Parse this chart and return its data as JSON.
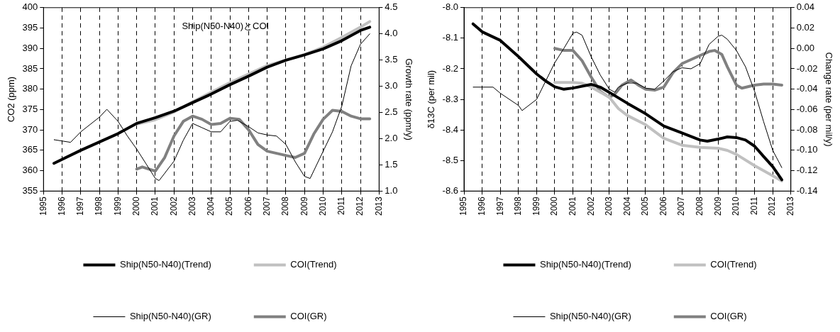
{
  "chart_data": [
    {
      "type": "line",
      "annotations": [
        "Ship(N50-N40)とCOI"
      ],
      "ylabel": "CO2 (ppm)",
      "y2label": "Growth rate (ppm/y)",
      "xlim": [
        1995,
        2013
      ],
      "xticks": [
        1995,
        1996,
        1997,
        1998,
        1999,
        2000,
        2001,
        2002,
        2003,
        2004,
        2005,
        2006,
        2007,
        2008,
        2009,
        2010,
        2011,
        2012,
        2013
      ],
      "ylim": [
        355,
        400
      ],
      "yticks": [
        355,
        360,
        365,
        370,
        375,
        380,
        385,
        390,
        395,
        400
      ],
      "y2lim": [
        1,
        4.5
      ],
      "y2ticks": [
        {
          "value": 1,
          "label": "1.0"
        },
        1.5,
        {
          "value": 2,
          "label": "2.0"
        },
        2.5,
        {
          "value": 3,
          "label": "3.0"
        },
        3.5,
        {
          "value": 4,
          "label": "4.0"
        },
        4.5
      ],
      "grid": "x",
      "legend": "bottom",
      "marker": "none",
      "line_style": "solid",
      "series": [
        {
          "name": "Ship(N50-N40)(Trend)",
          "color": "#000000",
          "x": [
            1995.56,
            1997,
            1999,
            2000,
            2001,
            2002,
            2003,
            2004,
            2005,
            2006,
            2007,
            2008,
            2009,
            2010,
            2011,
            2012,
            2012.5
          ],
          "values": [
            361.8,
            365.0,
            369.1,
            371.6,
            373.0,
            374.6,
            376.7,
            378.8,
            381.1,
            383.2,
            385.4,
            387.1,
            388.4,
            389.9,
            391.9,
            394.4,
            395.2
          ]
        },
        {
          "name": "COI(Trend)",
          "color": "#c0c0c0",
          "x": [
            2000,
            2001,
            2002,
            2003,
            2005,
            2007,
            2009,
            2010,
            2011,
            2012,
            2012.5
          ],
          "values": [
            371.4,
            372.5,
            374.4,
            376.9,
            381.6,
            385.8,
            388.5,
            390.3,
            392.7,
            395.2,
            396.6
          ]
        },
        {
          "name": "Ship(N50-N40)(GR)",
          "color": "#000000",
          "axis": "y2",
          "x": [
            1995.56,
            1996.45,
            1997,
            1998,
            1998.4,
            1999,
            1999.5,
            2000,
            2000.5,
            2001,
            2001.2,
            2002,
            2002.5,
            2003,
            2003.5,
            2004,
            2004.5,
            2005,
            2005.4,
            2006,
            2006.5,
            2007,
            2007.5,
            2008,
            2008.5,
            2009,
            2009.3,
            2010,
            2010.5,
            2011,
            2011.5,
            2012,
            2012.5
          ],
          "values": [
            1.98,
            1.93,
            2.13,
            2.41,
            2.56,
            2.33,
            2.05,
            1.8,
            1.52,
            1.24,
            1.2,
            1.57,
            1.97,
            2.29,
            2.21,
            2.13,
            2.13,
            2.33,
            2.35,
            2.23,
            2.11,
            2.07,
            2.05,
            1.89,
            1.56,
            1.28,
            1.24,
            1.76,
            2.13,
            2.62,
            3.39,
            3.8,
            4.0
          ]
        },
        {
          "name": "COI(GR)",
          "color": "#808080",
          "axis": "y2",
          "x": [
            2000,
            2000.3,
            2001,
            2001.5,
            2002,
            2002.5,
            2003,
            2003.5,
            2004,
            2004.5,
            2005,
            2005.5,
            2006,
            2006.5,
            2007,
            2007.5,
            2008,
            2008.5,
            2009,
            2009.5,
            2010,
            2010.5,
            2011,
            2011.5,
            2012,
            2012.5
          ],
          "values": [
            1.42,
            1.46,
            1.38,
            1.64,
            2.05,
            2.33,
            2.43,
            2.37,
            2.27,
            2.29,
            2.39,
            2.37,
            2.17,
            1.89,
            1.76,
            1.72,
            1.68,
            1.64,
            1.72,
            2.09,
            2.37,
            2.54,
            2.52,
            2.43,
            2.38,
            2.38
          ]
        }
      ]
    },
    {
      "type": "line",
      "ylabel": "δ13C (per mil)",
      "y2label": "Change rate (per mil/y)",
      "xlim": [
        1995,
        2013
      ],
      "xticks": [
        1995,
        1996,
        1997,
        1998,
        1999,
        2000,
        2001,
        2002,
        2003,
        2004,
        2005,
        2006,
        2007,
        2008,
        2009,
        2010,
        2011,
        2012,
        2013
      ],
      "ylim": [
        -8.6,
        -8
      ],
      "yticks": [
        -8.6,
        -8.5,
        -8.4,
        -8.3,
        -8.2,
        -8.1,
        {
          "value": -8,
          "label": "-8.0"
        }
      ],
      "y2lim": [
        -0.14,
        0.04
      ],
      "y2ticks": [
        -0.14,
        -0.12,
        {
          "value": -0.1,
          "label": "-0.10"
        },
        -0.08,
        -0.06,
        -0.04,
        -0.02,
        {
          "value": 0,
          "label": "0.00"
        },
        0.02,
        0.04
      ],
      "grid": "x",
      "legend": "bottom",
      "marker": "none",
      "line_style": "solid",
      "series": [
        {
          "name": "Ship(N50-N40)(Trend)",
          "color": "#000000",
          "x": [
            1995.5,
            1996,
            1997,
            1998,
            1999,
            1999.5,
            2000,
            2000.5,
            2001,
            2002,
            2002.5,
            2003,
            2004,
            2005,
            2006,
            2007,
            2008,
            2008.4,
            2009,
            2009.5,
            2010,
            2010.5,
            2011,
            2011.5,
            2012,
            2012.5
          ],
          "values": [
            -8.053,
            -8.079,
            -8.107,
            -8.16,
            -8.217,
            -8.24,
            -8.259,
            -8.267,
            -8.263,
            -8.251,
            -8.26,
            -8.277,
            -8.313,
            -8.347,
            -8.387,
            -8.41,
            -8.433,
            -8.437,
            -8.43,
            -8.423,
            -8.425,
            -8.433,
            -8.453,
            -8.487,
            -8.52,
            -8.563
          ]
        },
        {
          "name": "COI(Trend)",
          "color": "#c0c0c0",
          "x": [
            2000,
            2001,
            2001.5,
            2002,
            2003,
            2003.5,
            2004,
            2005,
            2006,
            2007,
            2008,
            2009,
            2009.5,
            2010,
            2011,
            2012,
            2012.5
          ],
          "values": [
            -8.245,
            -8.245,
            -8.247,
            -8.26,
            -8.293,
            -8.33,
            -8.353,
            -8.383,
            -8.427,
            -8.45,
            -8.457,
            -8.46,
            -8.467,
            -8.48,
            -8.517,
            -8.55,
            -8.567
          ]
        },
        {
          "name": "Ship(N50-N40)(GR)",
          "color": "#000000",
          "axis": "y2",
          "x": [
            1995.5,
            1996,
            1996.6,
            1997,
            1998,
            1998.2,
            1999,
            1999.5,
            2000,
            2000.5,
            2001,
            2001.2,
            2001.5,
            2002,
            2002.5,
            2003,
            2003.3,
            2003.5,
            2004,
            2004.5,
            2005,
            2005.5,
            2006,
            2006.5,
            2007,
            2007.5,
            2008,
            2008.5,
            2009,
            2009.2,
            2009.5,
            2010,
            2010.5,
            2011,
            2011.5,
            2012,
            2012.5
          ],
          "values": [
            -0.038,
            -0.038,
            -0.038,
            -0.044,
            -0.056,
            -0.061,
            -0.05,
            -0.032,
            -0.014,
            0.0,
            0.015,
            0.016,
            0.013,
            -0.008,
            -0.026,
            -0.04,
            -0.043,
            -0.038,
            -0.034,
            -0.034,
            -0.039,
            -0.04,
            -0.032,
            -0.023,
            -0.019,
            -0.02,
            -0.015,
            0.004,
            0.012,
            0.013,
            0.009,
            -0.002,
            -0.018,
            -0.042,
            -0.072,
            -0.1,
            -0.117
          ]
        },
        {
          "name": "COI(GR)",
          "color": "#808080",
          "axis": "y2",
          "x": [
            2000,
            2000.5,
            2001,
            2001.5,
            2002,
            2002.5,
            2003,
            2003.3,
            2003.7,
            2004.2,
            2004.6,
            2005,
            2005.5,
            2006,
            2006.5,
            2007,
            2007.5,
            2008,
            2008.5,
            2008.8,
            2009.2,
            2009.5,
            2010,
            2010.3,
            2011,
            2011.5,
            2012,
            2012.5
          ],
          "values": [
            0.0,
            -0.002,
            -0.002,
            -0.012,
            -0.028,
            -0.042,
            -0.048,
            -0.045,
            -0.036,
            -0.031,
            -0.036,
            -0.04,
            -0.041,
            -0.038,
            -0.024,
            -0.015,
            -0.011,
            -0.007,
            -0.003,
            -0.002,
            -0.006,
            -0.018,
            -0.036,
            -0.039,
            -0.036,
            -0.035,
            -0.035,
            -0.036
          ]
        }
      ]
    }
  ]
}
